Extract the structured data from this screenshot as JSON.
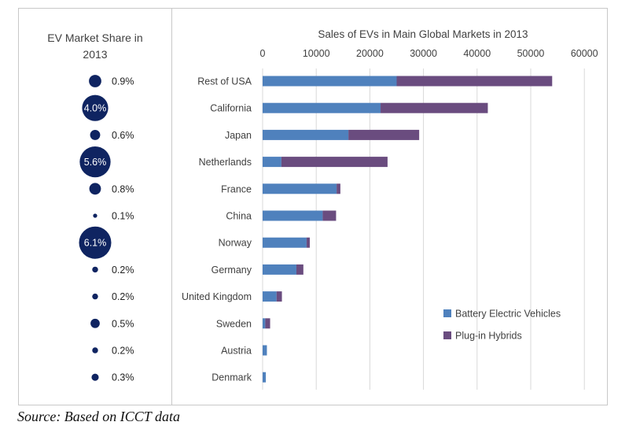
{
  "left_panel": {
    "title_line1": "EV Market Share in",
    "title_line2": "2013"
  },
  "source_note": "Source: Based on ICCT data",
  "colors": {
    "bev": "#4f81bd",
    "phev": "#6a4c7f",
    "bubble": "#0f2461",
    "gridline": "#d9d9d9",
    "text": "#404040"
  },
  "chart_data": [
    {
      "type": "bar",
      "orientation": "horizontal",
      "stacked": true,
      "title": "Sales of EVs in Main Global Markets in 2013",
      "xlabel": "",
      "ylabel": "",
      "xlim": [
        0,
        60000
      ],
      "x_ticks": [
        "0",
        "10000",
        "20000",
        "30000",
        "40000",
        "50000",
        "60000"
      ],
      "grid": true,
      "legend_position": "bottom-right",
      "categories": [
        "Rest of USA",
        "California",
        "Japan",
        "Netherlands",
        "France",
        "China",
        "Norway",
        "Germany",
        "United Kingdom",
        "Sweden",
        "Austria",
        "Denmark"
      ],
      "series": [
        {
          "name": "Battery Electric Vehicles",
          "color": "#4f81bd",
          "values": [
            25000,
            22000,
            16000,
            3500,
            13800,
            11200,
            8200,
            6300,
            2600,
            500,
            800,
            600
          ]
        },
        {
          "name": "Plug-in Hybrids",
          "color": "#6a4c7f",
          "values": [
            29000,
            20000,
            13200,
            19800,
            700,
            2500,
            600,
            1300,
            1000,
            900,
            0,
            0
          ]
        }
      ]
    },
    {
      "type": "scatter",
      "subtype": "bubble",
      "title": "EV Market Share in 2013",
      "categories": [
        "Rest of USA",
        "California",
        "Japan",
        "Netherlands",
        "France",
        "China",
        "Norway",
        "Germany",
        "United Kingdom",
        "Sweden",
        "Austria",
        "Denmark"
      ],
      "values": [
        0.9,
        4.0,
        0.6,
        5.6,
        0.8,
        0.1,
        6.1,
        0.2,
        0.2,
        0.5,
        0.2,
        0.3
      ],
      "labels": [
        "0.9%",
        "4.0%",
        "0.6%",
        "5.6%",
        "0.8%",
        "0.1%",
        "6.1%",
        "0.2%",
        "0.2%",
        "0.5%",
        "0.2%",
        "0.3%"
      ],
      "label_inside": [
        false,
        true,
        false,
        true,
        false,
        false,
        true,
        false,
        false,
        false,
        false,
        false
      ]
    }
  ]
}
